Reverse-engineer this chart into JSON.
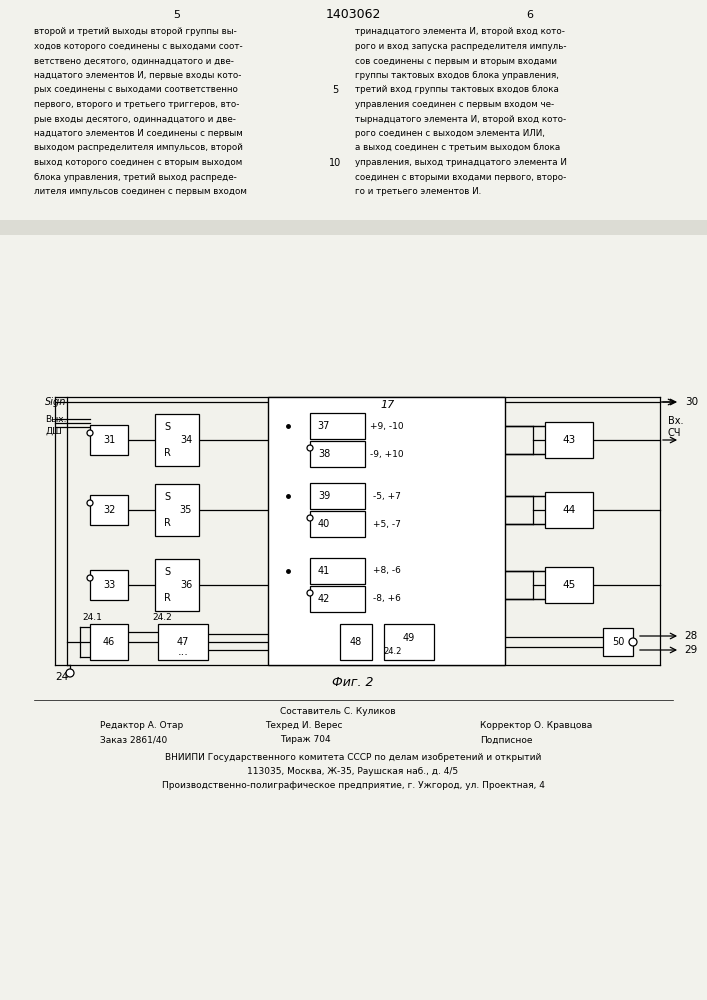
{
  "title": "1403062",
  "fig_caption": "Фиг. 2",
  "bg_color": "#e8e8e0",
  "page_num_left": "5",
  "page_num_right": "6"
}
